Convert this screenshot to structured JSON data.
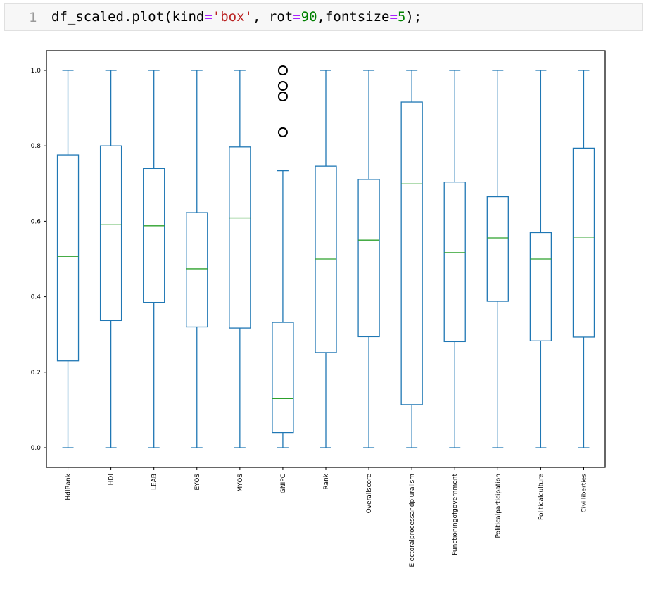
{
  "cell": {
    "prompt": "1",
    "code_tokens": [
      {
        "text": "df_scaled.plot(kind",
        "cls": ""
      },
      {
        "text": "=",
        "cls": "tok-op"
      },
      {
        "text": "'box'",
        "cls": "tok-str"
      },
      {
        "text": ", rot",
        "cls": ""
      },
      {
        "text": "=",
        "cls": "tok-op"
      },
      {
        "text": "90",
        "cls": "tok-num"
      },
      {
        "text": ",fontsize",
        "cls": ""
      },
      {
        "text": "=",
        "cls": "tok-op"
      },
      {
        "text": "5",
        "cls": "tok-num"
      },
      {
        "text": ");",
        "cls": ""
      }
    ]
  },
  "chart_data": {
    "type": "box",
    "title": "",
    "xlabel": "",
    "ylabel": "",
    "ylim": [
      -0.05,
      1.05
    ],
    "yticks": [
      0.0,
      0.2,
      0.4,
      0.6,
      0.8,
      1.0
    ],
    "ytick_labels": [
      "0.0",
      "0.2",
      "0.4",
      "0.6",
      "0.8",
      "1.0"
    ],
    "grid": false,
    "box_color": "#1f77b4",
    "median_color": "#2ca02c",
    "outlier_color": "#000000",
    "boxes": [
      {
        "label": "HdIRank",
        "whislo": 0.0,
        "q1": 0.23,
        "med": 0.507,
        "q3": 0.776,
        "whishi": 1.0,
        "fliers": []
      },
      {
        "label": "HDI",
        "whislo": 0.0,
        "q1": 0.337,
        "med": 0.591,
        "q3": 0.8,
        "whishi": 1.0,
        "fliers": []
      },
      {
        "label": "LEAB",
        "whislo": 0.0,
        "q1": 0.385,
        "med": 0.588,
        "q3": 0.74,
        "whishi": 1.0,
        "fliers": []
      },
      {
        "label": "EYOS",
        "whislo": 0.0,
        "q1": 0.32,
        "med": 0.474,
        "q3": 0.623,
        "whishi": 1.0,
        "fliers": []
      },
      {
        "label": "MYOS",
        "whislo": 0.0,
        "q1": 0.317,
        "med": 0.609,
        "q3": 0.797,
        "whishi": 1.0,
        "fliers": []
      },
      {
        "label": "GNIPC",
        "whislo": 0.0,
        "q1": 0.04,
        "med": 0.13,
        "q3": 0.332,
        "whishi": 0.734,
        "fliers": [
          0.836,
          0.931,
          0.959,
          1.0
        ]
      },
      {
        "label": "Rank",
        "whislo": 0.0,
        "q1": 0.252,
        "med": 0.5,
        "q3": 0.746,
        "whishi": 1.0,
        "fliers": []
      },
      {
        "label": "Overallscore",
        "whislo": 0.0,
        "q1": 0.294,
        "med": 0.55,
        "q3": 0.711,
        "whishi": 1.0,
        "fliers": []
      },
      {
        "label": "Electoralprocessandpluralism",
        "whislo": 0.0,
        "q1": 0.114,
        "med": 0.699,
        "q3": 0.916,
        "whishi": 1.0,
        "fliers": []
      },
      {
        "label": "Functioningofgovernment",
        "whislo": 0.0,
        "q1": 0.281,
        "med": 0.517,
        "q3": 0.704,
        "whishi": 1.0,
        "fliers": []
      },
      {
        "label": "Politicalparticipation",
        "whislo": 0.0,
        "q1": 0.388,
        "med": 0.556,
        "q3": 0.665,
        "whishi": 1.0,
        "fliers": []
      },
      {
        "label": "Politicalculture",
        "whislo": 0.0,
        "q1": 0.283,
        "med": 0.5,
        "q3": 0.57,
        "whishi": 1.0,
        "fliers": []
      },
      {
        "label": "Civilliberties",
        "whislo": 0.0,
        "q1": 0.293,
        "med": 0.558,
        "q3": 0.794,
        "whishi": 1.0,
        "fliers": []
      }
    ]
  }
}
